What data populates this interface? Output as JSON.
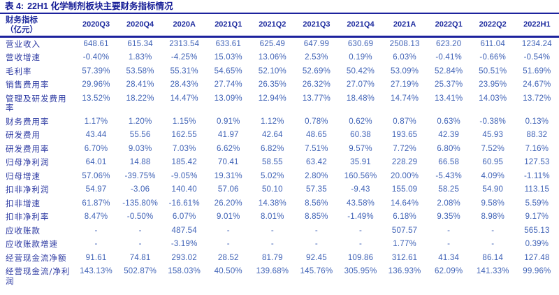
{
  "title": {
    "prefix": "表 4:",
    "caption": "22H1 化学制剂板块主要财务指标情况"
  },
  "colors": {
    "navy_accent": "#1c229d",
    "header_text": "#1c2a9e",
    "label_text": "#2a37a1",
    "value_text": "#3f62b6",
    "background": "#ffffff"
  },
  "table": {
    "row_header": {
      "title": "财务指标",
      "unit": "（亿元）"
    },
    "columns": [
      "2020Q3",
      "2020Q4",
      "2020A",
      "2021Q1",
      "2021Q2",
      "2021Q3",
      "2021Q4",
      "2021A",
      "2022Q1",
      "2022Q2",
      "2022H1"
    ],
    "rows": [
      {
        "label": "营业收入",
        "values": [
          "648.61",
          "615.34",
          "2313.54",
          "633.61",
          "625.49",
          "647.99",
          "630.69",
          "2508.13",
          "623.20",
          "611.04",
          "1234.24"
        ]
      },
      {
        "label": "营收增速",
        "values": [
          "-0.40%",
          "1.83%",
          "-4.25%",
          "15.03%",
          "13.06%",
          "2.53%",
          "0.19%",
          "6.03%",
          "-0.41%",
          "-0.66%",
          "-0.54%"
        ]
      },
      {
        "label": "毛利率",
        "values": [
          "57.39%",
          "53.58%",
          "55.31%",
          "54.65%",
          "52.10%",
          "52.69%",
          "50.42%",
          "53.09%",
          "52.84%",
          "50.51%",
          "51.69%"
        ]
      },
      {
        "label": "销售费用率",
        "values": [
          "29.96%",
          "28.41%",
          "28.43%",
          "27.74%",
          "26.35%",
          "26.32%",
          "27.07%",
          "27.19%",
          "25.37%",
          "23.95%",
          "24.67%"
        ]
      },
      {
        "label": "管理及研发费用率",
        "values": [
          "13.52%",
          "18.22%",
          "14.47%",
          "13.09%",
          "12.94%",
          "13.77%",
          "18.48%",
          "14.74%",
          "13.41%",
          "14.03%",
          "13.72%"
        ]
      },
      {
        "label": "财务费用率",
        "values": [
          "1.17%",
          "1.20%",
          "1.15%",
          "0.91%",
          "1.12%",
          "0.78%",
          "0.62%",
          "0.87%",
          "0.63%",
          "-0.38%",
          "0.13%"
        ]
      },
      {
        "label": "研发费用",
        "values": [
          "43.44",
          "55.56",
          "162.55",
          "41.97",
          "42.64",
          "48.65",
          "60.38",
          "193.65",
          "42.39",
          "45.93",
          "88.32"
        ]
      },
      {
        "label": "研发费用率",
        "values": [
          "6.70%",
          "9.03%",
          "7.03%",
          "6.62%",
          "6.82%",
          "7.51%",
          "9.57%",
          "7.72%",
          "6.80%",
          "7.52%",
          "7.16%"
        ]
      },
      {
        "label": "归母净利润",
        "values": [
          "64.01",
          "14.88",
          "185.42",
          "70.41",
          "58.55",
          "63.42",
          "35.91",
          "228.29",
          "66.58",
          "60.95",
          "127.53"
        ]
      },
      {
        "label": "归母增速",
        "values": [
          "57.06%",
          "-39.75%",
          "-9.05%",
          "19.31%",
          "5.02%",
          "2.80%",
          "160.56%",
          "20.00%",
          "-5.43%",
          "4.09%",
          "-1.11%"
        ]
      },
      {
        "label": "扣非净利润",
        "values": [
          "54.97",
          "-3.06",
          "140.40",
          "57.06",
          "50.10",
          "57.35",
          "-9.43",
          "155.09",
          "58.25",
          "54.90",
          "113.15"
        ]
      },
      {
        "label": "扣非增速",
        "values": [
          "61.87%",
          "-135.80%",
          "-16.61%",
          "26.20%",
          "14.38%",
          "8.56%",
          "43.58%",
          "14.64%",
          "2.08%",
          "9.58%",
          "5.59%"
        ]
      },
      {
        "label": "扣非净利率",
        "values": [
          "8.47%",
          "-0.50%",
          "6.07%",
          "9.01%",
          "8.01%",
          "8.85%",
          "-1.49%",
          "6.18%",
          "9.35%",
          "8.98%",
          "9.17%"
        ]
      },
      {
        "label": "应收账款",
        "values": [
          "-",
          "-",
          "487.54",
          "-",
          "-",
          "-",
          "-",
          "507.57",
          "-",
          "-",
          "565.13"
        ]
      },
      {
        "label": "应收账款增速",
        "values": [
          "-",
          "-",
          "-3.19%",
          "-",
          "-",
          "-",
          "-",
          "1.77%",
          "-",
          "-",
          "0.39%"
        ]
      },
      {
        "label": "经营现金流净额",
        "values": [
          "91.61",
          "74.81",
          "293.02",
          "28.52",
          "81.79",
          "92.45",
          "109.86",
          "312.61",
          "41.34",
          "86.14",
          "127.48"
        ]
      },
      {
        "label": "经营现金流/净利润",
        "values": [
          "143.13%",
          "502.87%",
          "158.03%",
          "40.50%",
          "139.68%",
          "145.76%",
          "305.95%",
          "136.93%",
          "62.09%",
          "141.33%",
          "99.96%"
        ]
      }
    ]
  }
}
